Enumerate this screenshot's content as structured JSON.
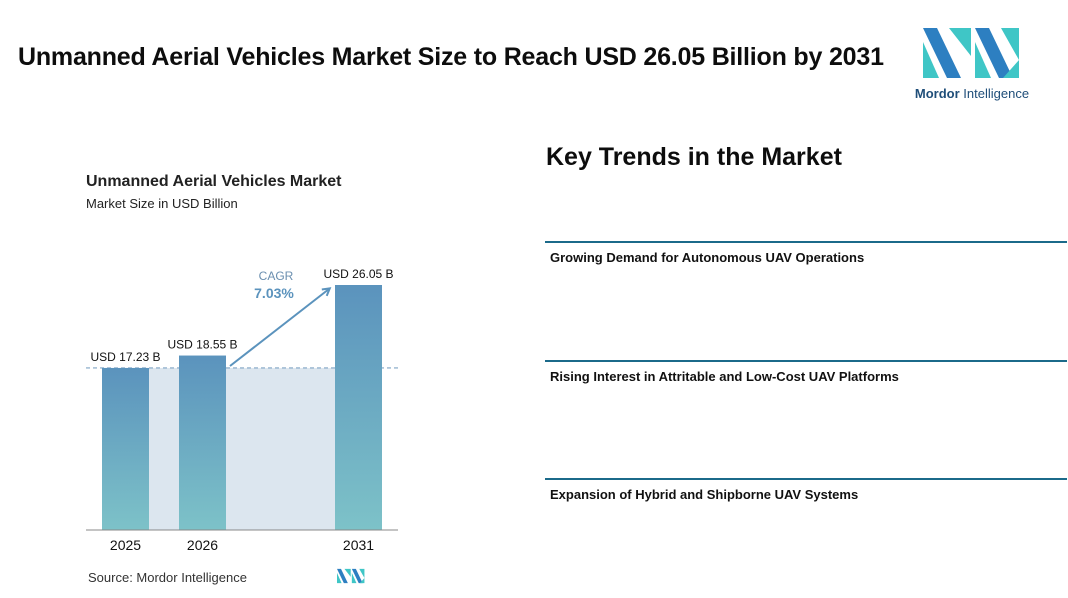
{
  "headline": "Unmanned Aerial Vehicles Market Size to Reach USD 26.05 Billion by 2031",
  "logo": {
    "name_bold": "Mordor",
    "name_regular": " Intelligence"
  },
  "chart_data": {
    "type": "bar",
    "title": "Unmanned Aerial Vehicles Market",
    "subtitle": "Market Size in USD Billion",
    "categories": [
      "2025",
      "2026",
      "2031"
    ],
    "values": [
      17.23,
      18.55,
      26.05
    ],
    "data_labels": [
      "USD 17.23 B",
      "USD 18.55 B",
      "USD 26.05 B"
    ],
    "annotation": {
      "label": "CAGR",
      "value": "7.03%"
    },
    "ylim": [
      0,
      26.05
    ],
    "grid": false,
    "bar_gradient": [
      "#5b93bd",
      "#7dc2c8"
    ],
    "baseline_fill": "#dce6ef",
    "arrow_color": "#5b93bd"
  },
  "source": "Source:  Mordor Intelligence",
  "trends": {
    "title": "Key Trends in the Market",
    "items": [
      "Growing Demand for Autonomous UAV Operations",
      "Rising Interest in Attritable and Low-Cost UAV Platforms",
      "Expansion of Hybrid and Shipborne UAV Systems"
    ]
  },
  "colors": {
    "brand_dark": "#1f4e79",
    "brand_teal": "#3fc6c6",
    "brand_blue": "#2d7fc1",
    "divider": "#1b6a8a"
  }
}
